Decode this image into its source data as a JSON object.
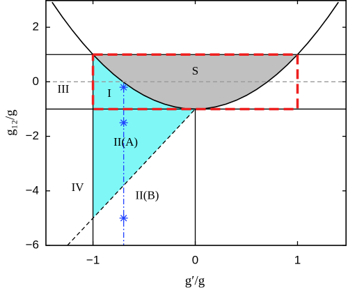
{
  "chart_data": {
    "type": "phase-diagram",
    "x_label": "g′/g",
    "y_label": "g₁₂/g",
    "xlim": [
      -1.46,
      1.48
    ],
    "ylim": [
      -6,
      3
    ],
    "xticks": [
      {
        "value": -1,
        "label": "−1"
      },
      0,
      1
    ],
    "yticks": [
      {
        "value": -6,
        "label": "−6"
      },
      {
        "value": -4,
        "label": "−4"
      },
      {
        "value": -2,
        "label": "−2"
      },
      0,
      2
    ],
    "regions": [
      {
        "color": "#c0c0c0",
        "x": [
          -1,
          -0.9,
          -0.8,
          -0.7,
          -0.6,
          -0.5,
          -0.4,
          -0.3,
          -0.2,
          -0.1,
          0,
          0.1,
          0.2,
          0.3,
          0.4,
          0.5,
          0.6,
          0.7,
          0.8,
          0.9,
          1
        ],
        "values": [
          1,
          0.62,
          0.28,
          -0.02,
          -0.28,
          -0.5,
          -0.68,
          -0.82,
          -0.92,
          -0.98,
          -1,
          -0.98,
          -0.92,
          -0.82,
          -0.68,
          -0.5,
          -0.28,
          -0.02,
          0.28,
          0.62,
          1
        ]
      },
      {
        "color": "#7ff7f7",
        "x": [
          -1,
          -0.9,
          -0.8,
          -0.7,
          -0.6,
          -0.5,
          -0.4,
          -0.3,
          -0.2,
          -0.1,
          0,
          -1
        ],
        "values": [
          1,
          0.62,
          0.28,
          -0.02,
          -0.28,
          -0.5,
          -0.68,
          -0.82,
          -0.92,
          -0.98,
          -1,
          -5
        ]
      }
    ],
    "series": [
      {
        "style": "solid",
        "color": "#000000",
        "width": 1.6,
        "x": [
          -1.4,
          -1.3,
          -1.2,
          -1.1,
          -1,
          -0.9,
          -0.8,
          -0.7,
          -0.6,
          -0.5,
          -0.4,
          -0.3,
          -0.2,
          -0.1,
          0,
          0.1,
          0.2,
          0.3,
          0.4,
          0.5,
          0.6,
          0.7,
          0.8,
          0.9,
          1,
          1.1,
          1.2,
          1.3,
          1.4
        ],
        "values": [
          2.92,
          2.38,
          1.88,
          1.42,
          1,
          0.62,
          0.28,
          -0.02,
          -0.28,
          -0.5,
          -0.68,
          -0.82,
          -0.92,
          -0.98,
          -1,
          -0.98,
          -0.92,
          -0.82,
          -0.68,
          -0.5,
          -0.28,
          -0.02,
          0.28,
          0.62,
          1,
          1.42,
          1.88,
          2.38,
          2.92
        ]
      },
      {
        "style": "solid",
        "color": "#000000",
        "width": 1.3,
        "x": [
          -1.46,
          1.48
        ],
        "values": [
          1,
          1
        ]
      },
      {
        "style": "solid",
        "color": "#000000",
        "width": 1.3,
        "x": [
          -1.46,
          1.48
        ],
        "values": [
          -1,
          -1
        ]
      },
      {
        "style": "dashed",
        "color": "#999999",
        "width": 1.3,
        "x": [
          -1.46,
          1.48
        ],
        "values": [
          0,
          0
        ]
      },
      {
        "style": "solid",
        "color": "#000000",
        "width": 1.3,
        "x": [
          -1,
          -1
        ],
        "values": [
          1,
          -6
        ]
      },
      {
        "style": "solid",
        "color": "#000000",
        "width": 1.3,
        "x": [
          0,
          0
        ],
        "values": [
          -1,
          -6
        ]
      },
      {
        "style": "dashed",
        "color": "#000000",
        "width": 1.3,
        "x": [
          -1.25,
          0
        ],
        "values": [
          -6,
          -1
        ]
      },
      {
        "style": "dashdot",
        "color": "#2040ff",
        "width": 1.3,
        "x": [
          -0.7,
          -0.7
        ],
        "values": [
          -0.2,
          -6
        ]
      },
      {
        "style": "bigdash",
        "color": "#ee2020",
        "width": 3.5,
        "x": [
          -1,
          1,
          1,
          -1,
          -1
        ],
        "values": [
          1,
          1,
          -1,
          -1,
          1
        ]
      },
      {
        "style": "star",
        "color": "#2040ff",
        "x": [
          -0.7,
          -0.7,
          -0.7
        ],
        "values": [
          -0.2,
          -1.5,
          -5
        ]
      }
    ],
    "annotations": [
      {
        "text": "S",
        "x": 0,
        "y": 0.36
      },
      {
        "text": "I",
        "x": -0.84,
        "y": -0.45
      },
      {
        "text": "III",
        "x": -1.29,
        "y": -0.3
      },
      {
        "text": "II(A)",
        "x": -0.68,
        "y": -2.25
      },
      {
        "text": "IV",
        "x": -1.15,
        "y": -3.9
      },
      {
        "text": "II(B)",
        "x": -0.47,
        "y": -4.2
      }
    ]
  }
}
